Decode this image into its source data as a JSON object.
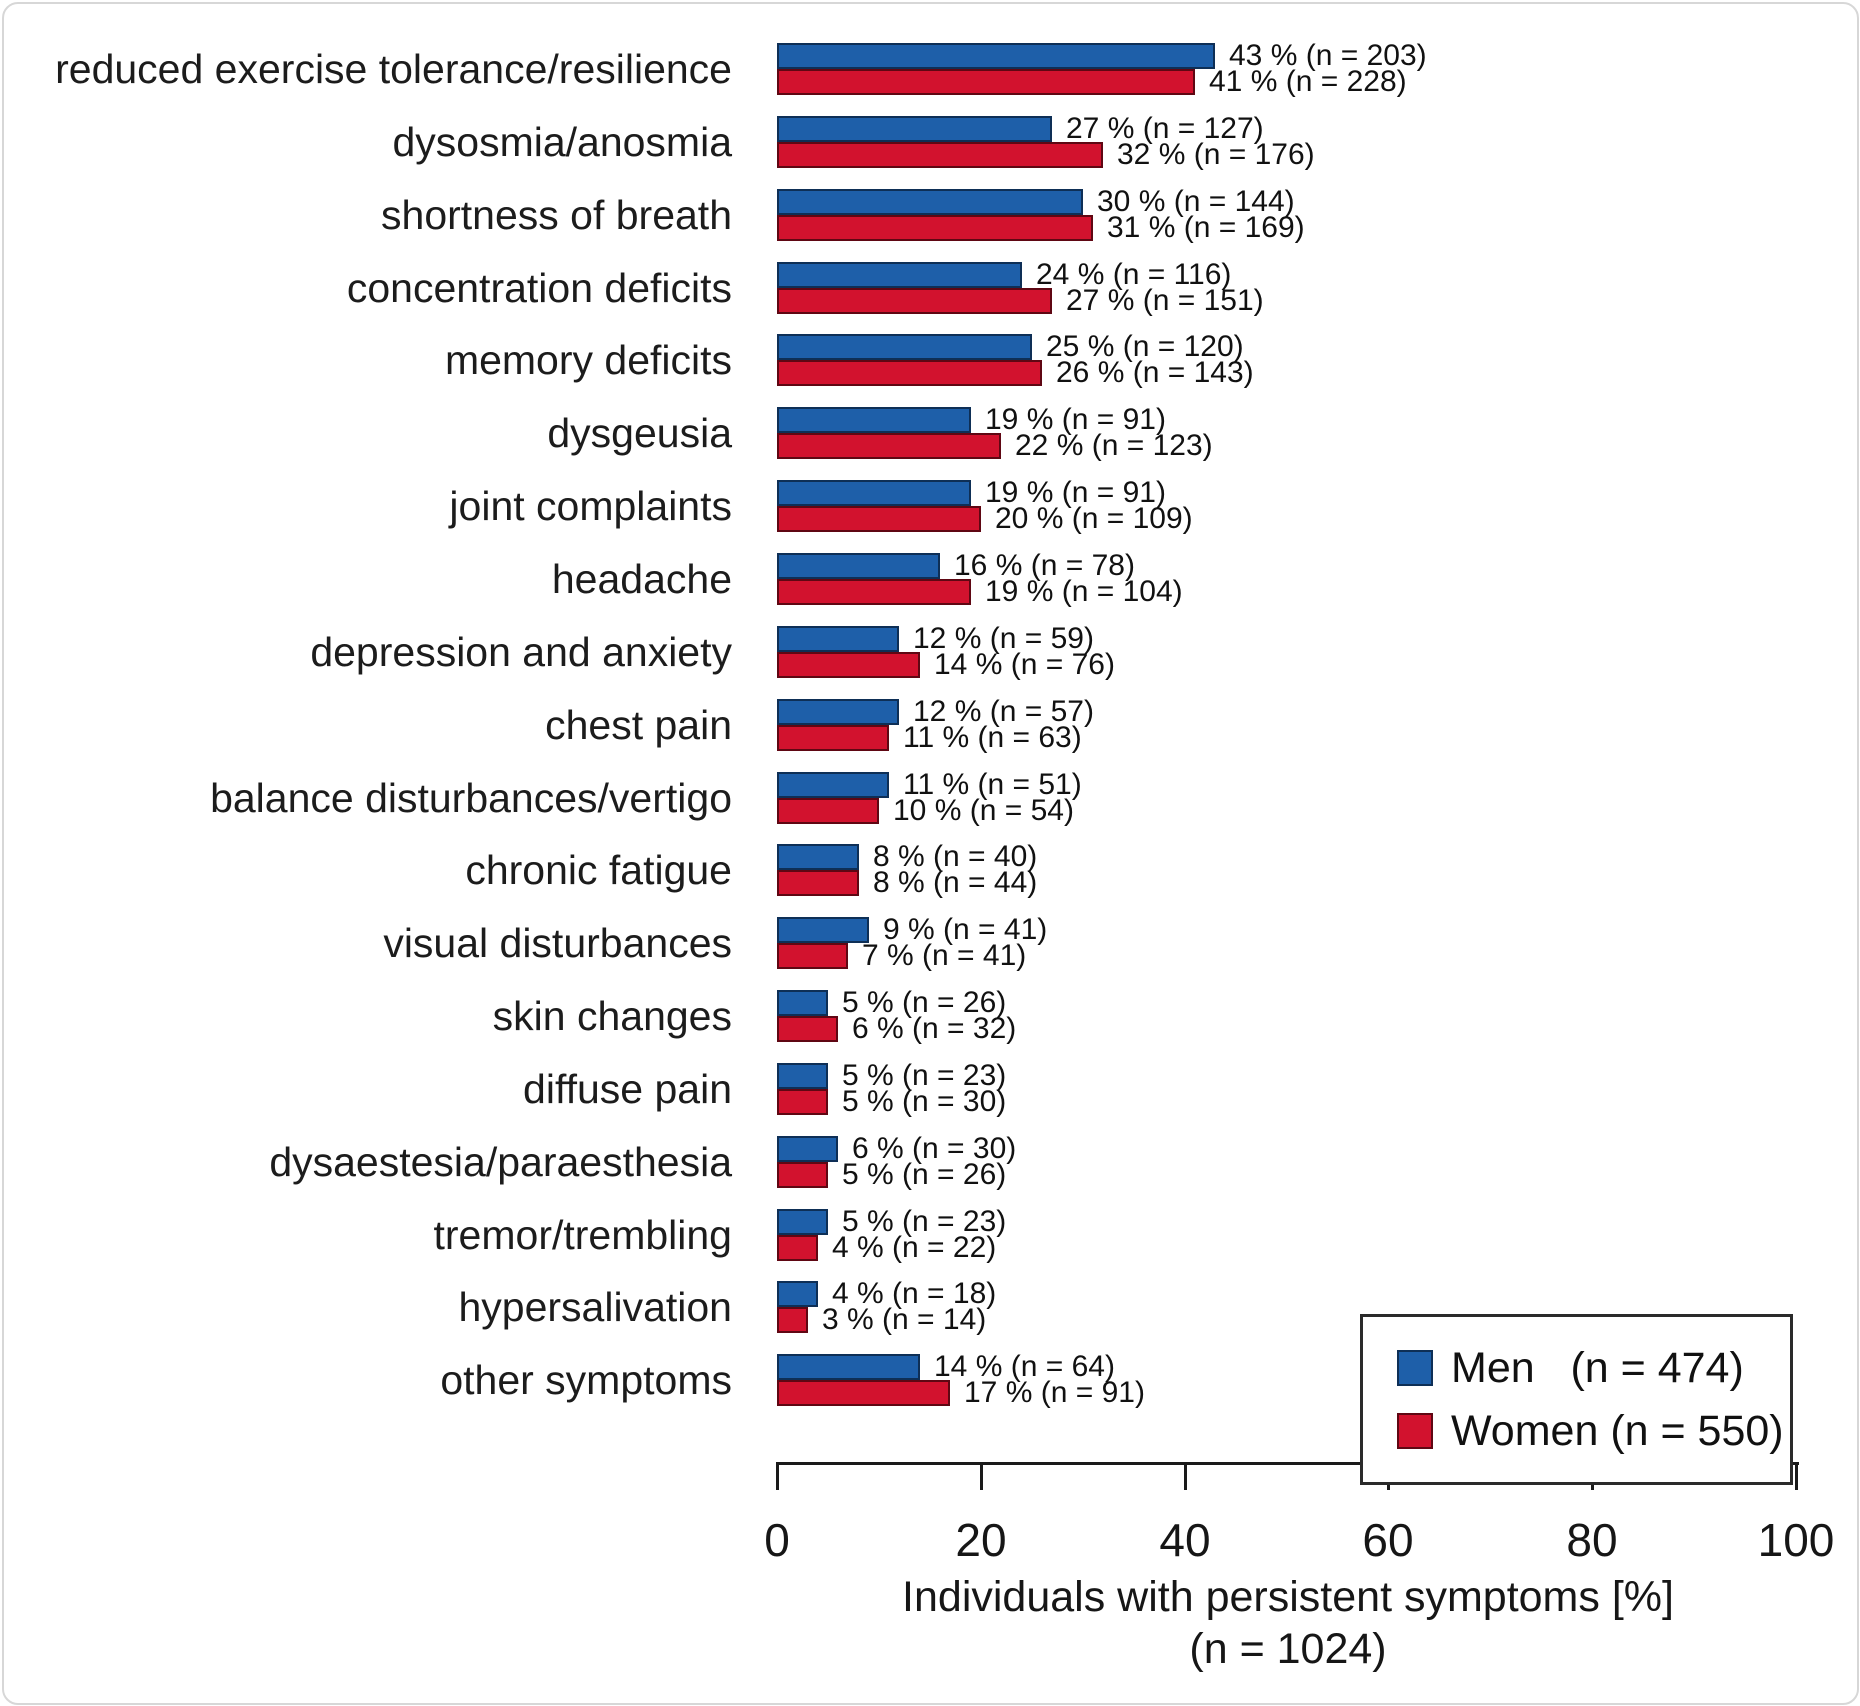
{
  "chart_data": {
    "type": "bar",
    "orientation": "horizontal",
    "title": "",
    "xlabel": "Individuals with persistent symptoms [%]",
    "xlabel_line2": "(n = 1024)",
    "xlim": [
      0,
      100
    ],
    "xticks": [
      0,
      20,
      40,
      60,
      80,
      100
    ],
    "grid": false,
    "legend_position": "lower right",
    "annotation_format": "{pct} % (n = {n})",
    "categories": [
      "reduced exercise tolerance/resilience",
      "dysosmia/anosmia",
      "shortness of breath",
      "concentration deficits",
      "memory deficits",
      "dysgeusia",
      "joint complaints",
      "headache",
      "depression and anxiety",
      "chest pain",
      "balance disturbances/vertigo",
      "chronic fatigue",
      "visual disturbances",
      "skin changes",
      "diffuse pain",
      "dysaestesia/paraesthesia",
      "tremor/trembling",
      "hypersalivation",
      "other symptoms"
    ],
    "series": [
      {
        "name": "Men",
        "n_total": 474,
        "legend_label": "Men   (n = 474)",
        "color": "#1E5FA9",
        "edge_color": "#0e2f56",
        "values": [
          43,
          27,
          30,
          24,
          25,
          19,
          19,
          16,
          12,
          12,
          11,
          8,
          9,
          5,
          5,
          6,
          5,
          4,
          14
        ],
        "counts": [
          203,
          127,
          144,
          116,
          120,
          91,
          91,
          78,
          59,
          57,
          51,
          40,
          41,
          26,
          23,
          30,
          23,
          18,
          64
        ]
      },
      {
        "name": "Women",
        "n_total": 550,
        "legend_label": "Women (n = 550)",
        "color": "#D2122E",
        "edge_color": "#5f0713",
        "values": [
          41,
          32,
          31,
          27,
          26,
          22,
          20,
          19,
          14,
          11,
          10,
          8,
          7,
          6,
          5,
          5,
          4,
          3,
          17
        ],
        "counts": [
          228,
          176,
          169,
          151,
          143,
          123,
          109,
          104,
          76,
          63,
          54,
          44,
          41,
          32,
          30,
          26,
          22,
          14,
          91
        ]
      }
    ]
  }
}
